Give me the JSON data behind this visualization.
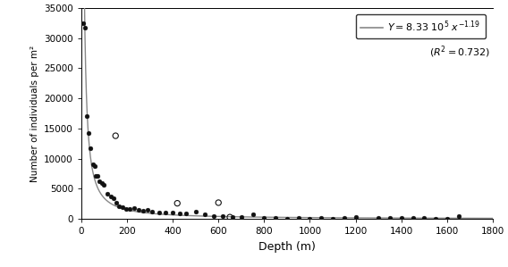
{
  "title": "",
  "xlabel": "Depth (m)",
  "ylabel": "Number of individuals per m²",
  "xlim": [
    0,
    1800
  ],
  "ylim": [
    0,
    35000
  ],
  "xticks": [
    0,
    200,
    400,
    600,
    800,
    1000,
    1200,
    1400,
    1600,
    1800
  ],
  "yticks": [
    0,
    5000,
    10000,
    15000,
    20000,
    25000,
    30000,
    35000
  ],
  "curve_a": 833000,
  "curve_b": -1.19,
  "filled_points": [
    [
      10,
      32500
    ],
    [
      15,
      31800
    ],
    [
      25,
      17000
    ],
    [
      30,
      14200
    ],
    [
      40,
      11800
    ],
    [
      50,
      9000
    ],
    [
      60,
      8700
    ],
    [
      65,
      7200
    ],
    [
      70,
      7100
    ],
    [
      80,
      6200
    ],
    [
      90,
      6000
    ],
    [
      100,
      5700
    ],
    [
      115,
      4200
    ],
    [
      130,
      3700
    ],
    [
      140,
      3400
    ],
    [
      155,
      2700
    ],
    [
      165,
      2100
    ],
    [
      180,
      1900
    ],
    [
      195,
      1700
    ],
    [
      210,
      1600
    ],
    [
      230,
      1800
    ],
    [
      250,
      1500
    ],
    [
      270,
      1300
    ],
    [
      290,
      1500
    ],
    [
      310,
      1200
    ],
    [
      340,
      1100
    ],
    [
      370,
      1100
    ],
    [
      400,
      1000
    ],
    [
      430,
      900
    ],
    [
      460,
      850
    ],
    [
      500,
      1200
    ],
    [
      540,
      700
    ],
    [
      580,
      500
    ],
    [
      620,
      400
    ],
    [
      660,
      300
    ],
    [
      700,
      250
    ],
    [
      750,
      800
    ],
    [
      800,
      200
    ],
    [
      850,
      150
    ],
    [
      900,
      100
    ],
    [
      950,
      150
    ],
    [
      1000,
      100
    ],
    [
      1050,
      120
    ],
    [
      1100,
      100
    ],
    [
      1150,
      200
    ],
    [
      1200,
      250
    ],
    [
      1300,
      200
    ],
    [
      1350,
      150
    ],
    [
      1400,
      200
    ],
    [
      1450,
      150
    ],
    [
      1500,
      180
    ],
    [
      1550,
      100
    ],
    [
      1600,
      100
    ],
    [
      1650,
      500
    ]
  ],
  "open_points": [
    [
      150,
      13800
    ],
    [
      420,
      2600
    ],
    [
      600,
      2700
    ],
    [
      650,
      300
    ]
  ],
  "line_color": "#888888",
  "filled_color": "#111111",
  "open_color": "#111111",
  "figsize": [
    5.68,
    2.99
  ],
  "dpi": 100
}
